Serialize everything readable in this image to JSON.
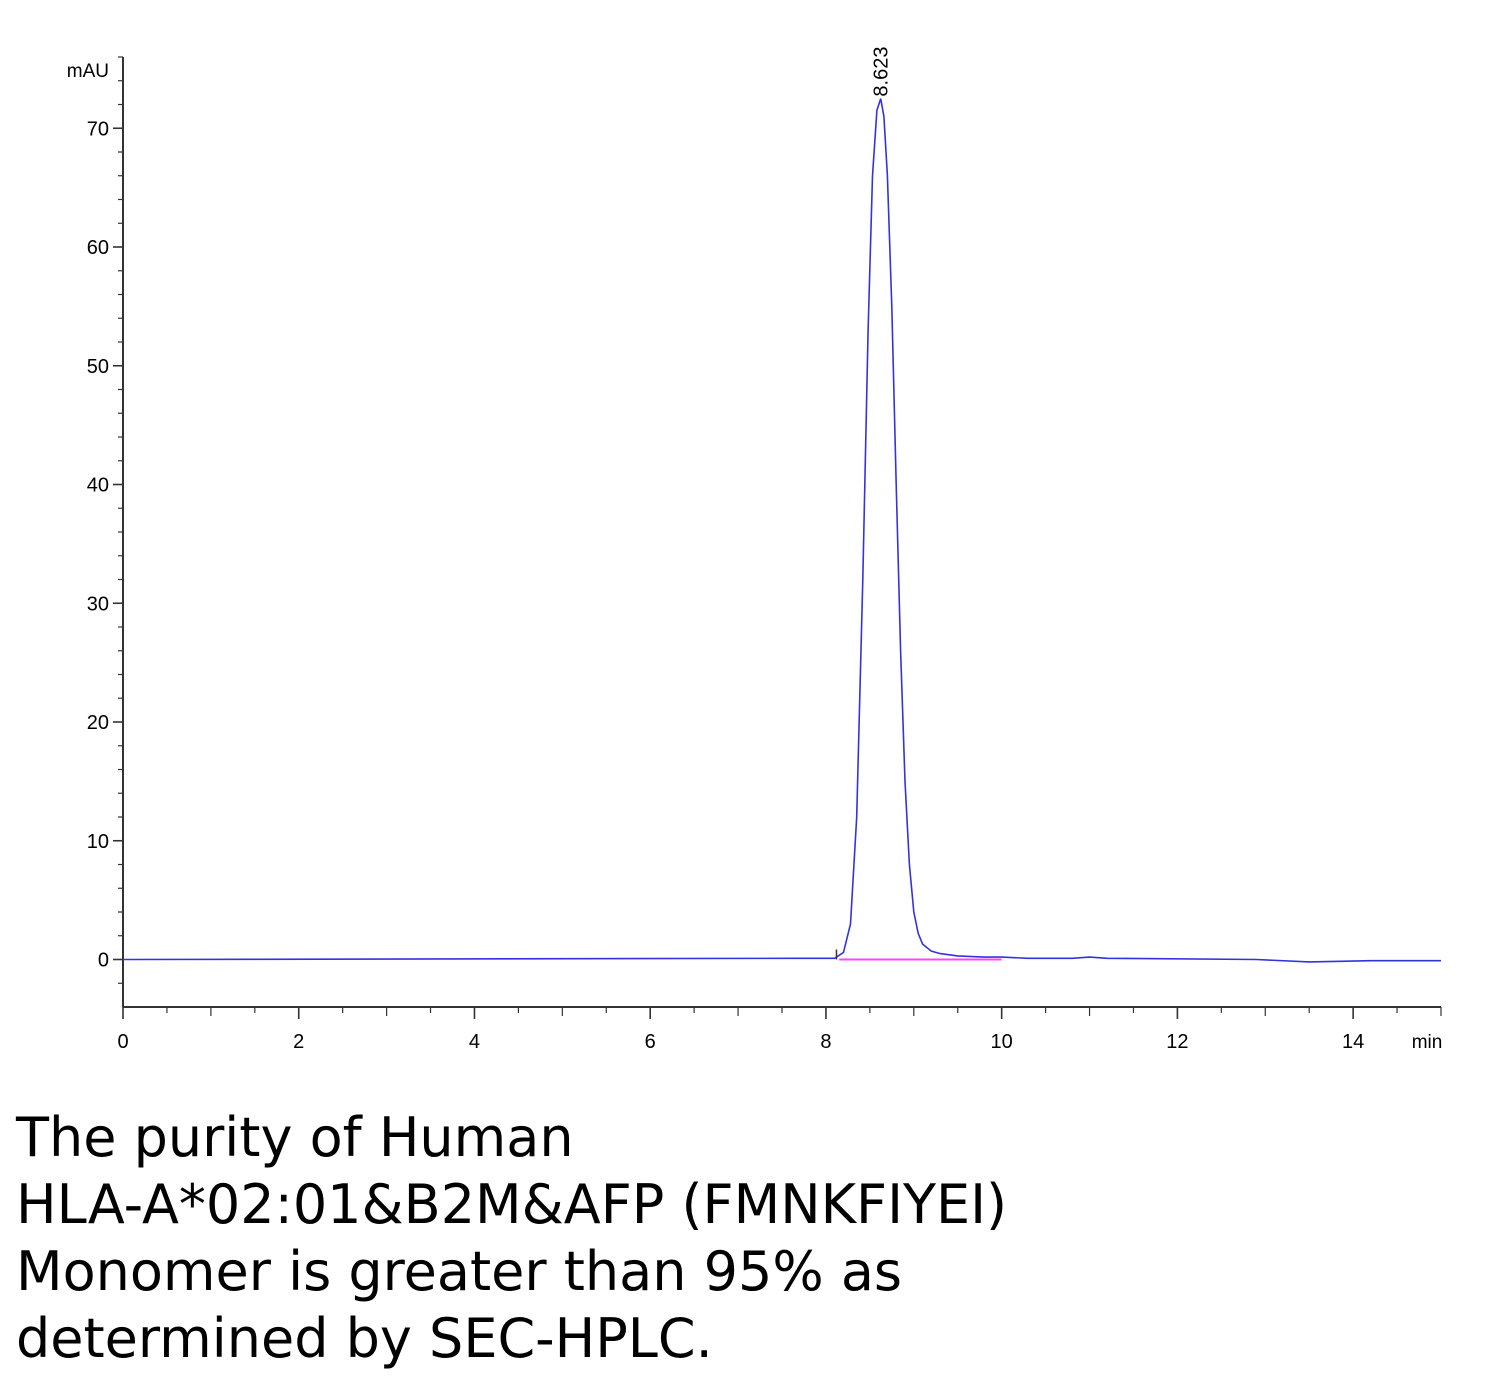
{
  "chart_data": {
    "type": "line",
    "y_unit_label": "mAU",
    "x_unit_label": "min",
    "xlim": [
      0,
      15
    ],
    "ylim": [
      -4,
      76
    ],
    "x_ticks": [
      0,
      2,
      4,
      6,
      8,
      10,
      12,
      14
    ],
    "y_ticks": [
      0,
      10,
      20,
      30,
      40,
      50,
      60,
      70
    ],
    "series": [
      {
        "color": "#3333dd",
        "x": [
          0,
          7.7,
          8.1,
          8.2,
          8.28,
          8.35,
          8.42,
          8.48,
          8.53,
          8.58,
          8.623,
          8.66,
          8.7,
          8.75,
          8.8,
          8.85,
          8.9,
          8.95,
          9.0,
          9.05,
          9.1,
          9.2,
          9.3,
          9.5,
          9.8,
          10.0,
          10.3,
          10.8,
          11.0,
          11.2,
          12.9,
          13.5,
          14.2,
          15.0
        ],
        "y": [
          0,
          0.1,
          0.1,
          0.6,
          3,
          12,
          32,
          53,
          66,
          71.5,
          72.5,
          71,
          66,
          55,
          40,
          26,
          15,
          8,
          4,
          2.2,
          1.3,
          0.7,
          0.5,
          0.3,
          0.2,
          0.2,
          0.1,
          0.1,
          0.2,
          0.1,
          0,
          -0.2,
          -0.1,
          -0.1
        ]
      }
    ],
    "baseline": {
      "color": "#ff44ff",
      "x": [
        8.15,
        10.0
      ],
      "y": [
        0,
        0
      ]
    },
    "peaks": [
      {
        "x": 8.623,
        "y": 72.5,
        "label": "8.623"
      }
    ],
    "injection_marker_x": 8.12
  },
  "caption": {
    "lines": [
      "The purity of Human",
      "HLA-A*02:01&B2M&AFP (FMNKFIYEI)",
      "Monomer is greater than 95% as",
      "determined by SEC-HPLC."
    ]
  }
}
